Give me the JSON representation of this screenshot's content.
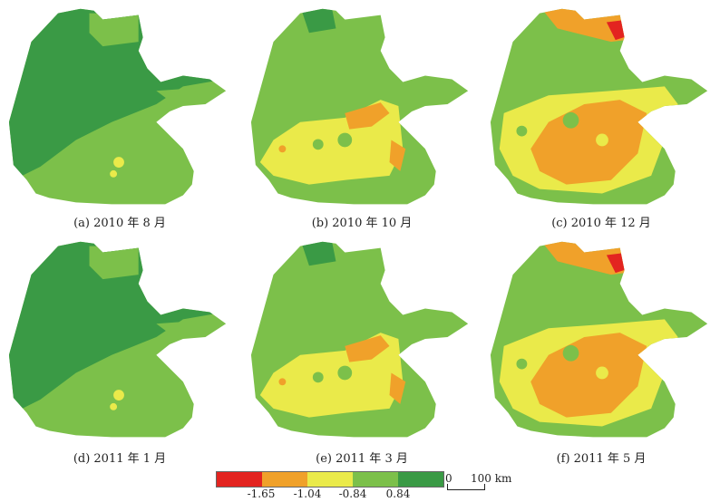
{
  "panels": [
    {
      "caption": "(a) 2010 年 8 月",
      "variant": "a"
    },
    {
      "caption": "(b) 2010 年 10 月",
      "variant": "b"
    },
    {
      "caption": "(c) 2010 年 12 月",
      "variant": "c"
    },
    {
      "caption": "(d) 2011 年 1 月",
      "variant": "a"
    },
    {
      "caption": "(e) 2011 年 3 月",
      "variant": "b"
    },
    {
      "caption": "(f) 2011 年 5 月",
      "variant": "c"
    }
  ],
  "legend": {
    "colors": [
      "#e32420",
      "#f0a12a",
      "#eaea4a",
      "#7cc04a",
      "#3a9a45"
    ],
    "ticks": [
      "-1.65",
      "-1.04",
      "-0.84",
      "0.84"
    ]
  },
  "scale": {
    "zero": "0",
    "label": "100 km"
  }
}
